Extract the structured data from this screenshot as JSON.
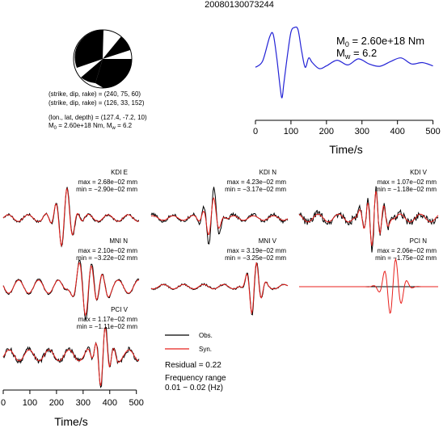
{
  "title": "20080130073244",
  "source_summary": {
    "line1": "(strike, dip, rake) = (240, 75, 60)",
    "line2": "(strike, dip, rake) = (126, 33, 152)",
    "line3": "(lon., lat, depth) = (127.4, -7.2, 10)",
    "m0_text": "M",
    "m0_sub": "0",
    "m0_val": " = 2.60e+18 Nm, M",
    "mw_sub": "w",
    "mw_val": " = 6.2"
  },
  "stf_annotation": {
    "m0_label": "M",
    "m0_sub": "0",
    "m0_value": " = 2.60e+18 Nm",
    "mw_label": "M",
    "mw_sub": "w",
    "mw_value": " = 6.2"
  },
  "legend": {
    "obs_label": "Obs.",
    "syn_label": "Syn.",
    "obs_color": "#000000",
    "syn_color": "#e8201c",
    "residual": "Residual = 0.22",
    "freq_title": "Frequency range",
    "freq_value": "0.01 − 0.02 (Hz)"
  },
  "colors": {
    "stf_line": "#2323d6",
    "beachball_fill": "#000000"
  },
  "chart_data": [
    {
      "type": "line",
      "name": "source-time-function",
      "xlabel": "Time/s",
      "ylabel": "",
      "xlim": [
        0,
        510
      ],
      "xticks": [
        0,
        100,
        200,
        300,
        400,
        500
      ],
      "x": [
        0,
        20,
        40,
        50,
        60,
        70,
        75,
        80,
        90,
        100,
        110,
        120,
        130,
        140,
        150,
        160,
        180,
        200,
        230,
        260,
        290,
        320,
        350,
        380,
        410,
        440,
        470,
        500
      ],
      "y": [
        0.15,
        0.28,
        0.8,
        0.85,
        0.35,
        -0.3,
        -0.5,
        -0.2,
        0.4,
        0.9,
        1.0,
        0.95,
        0.5,
        0.15,
        0.35,
        0.25,
        0.12,
        0.18,
        0.3,
        0.2,
        0.33,
        0.22,
        0.17,
        0.27,
        0.35,
        0.22,
        0.25,
        0.18
      ]
    },
    {
      "type": "line",
      "name": "waveforms",
      "xlabel": "Time/s",
      "xlim": [
        0,
        510
      ],
      "xticks": [
        0,
        100,
        200,
        300,
        400,
        500
      ],
      "series_names": [
        "Obs.",
        "Syn."
      ],
      "panels": [
        {
          "station": "KDI E",
          "max": "max = 2.68e−02 mm",
          "min": "min = −2.90e−02 mm",
          "center": 230,
          "spread": 45,
          "period": 42,
          "amp_obs": 1.0,
          "amp_syn": 0.95,
          "noise": 0.08,
          "pre": 0.12
        },
        {
          "station": "KDI N",
          "max": "max = 4.23e−02 mm",
          "min": "min = −3.17e−02 mm",
          "center": 225,
          "spread": 35,
          "period": 40,
          "amp_obs": 1.0,
          "amp_syn": 0.65,
          "noise": 0.1,
          "pre": 0.12
        },
        {
          "station": "KDI V",
          "max": "max = 1.07e−02 mm",
          "min": "min = −1.18e−02 mm",
          "center": 275,
          "spread": 40,
          "period": 30,
          "amp_obs": 1.0,
          "amp_syn": 0.9,
          "noise": 0.25,
          "pre": 0.15
        },
        {
          "station": "MNI N",
          "max": "max = 2.10e−02 mm",
          "min": "min = −3.22e−02 mm",
          "center": 320,
          "spread": 55,
          "period": 45,
          "amp_obs": 1.0,
          "amp_syn": 0.9,
          "noise": 0.05,
          "pre": 0.25
        },
        {
          "station": "MNI V",
          "max": "max = 3.19e−02 mm",
          "min": "min = −3.25e−02 mm",
          "center": 385,
          "spread": 30,
          "period": 38,
          "amp_obs": 1.0,
          "amp_syn": 0.95,
          "noise": 0.06,
          "pre": 0.08
        },
        {
          "station": "PCI N",
          "max": "max = 2.06e−02 mm",
          "min": "min = −1.75e−02 mm",
          "center": 345,
          "spread": 40,
          "period": 42,
          "amp_obs": 0.0,
          "amp_syn": 1.0,
          "noise": 0.0,
          "pre": 0.0
        },
        {
          "station": "PCI V",
          "max": "max = 1.17e−02 mm",
          "min": "min = −1.11e−02 mm",
          "center": 375,
          "spread": 35,
          "period": 35,
          "amp_obs": 1.0,
          "amp_syn": 0.95,
          "noise": 0.18,
          "pre": 0.2
        }
      ]
    }
  ]
}
